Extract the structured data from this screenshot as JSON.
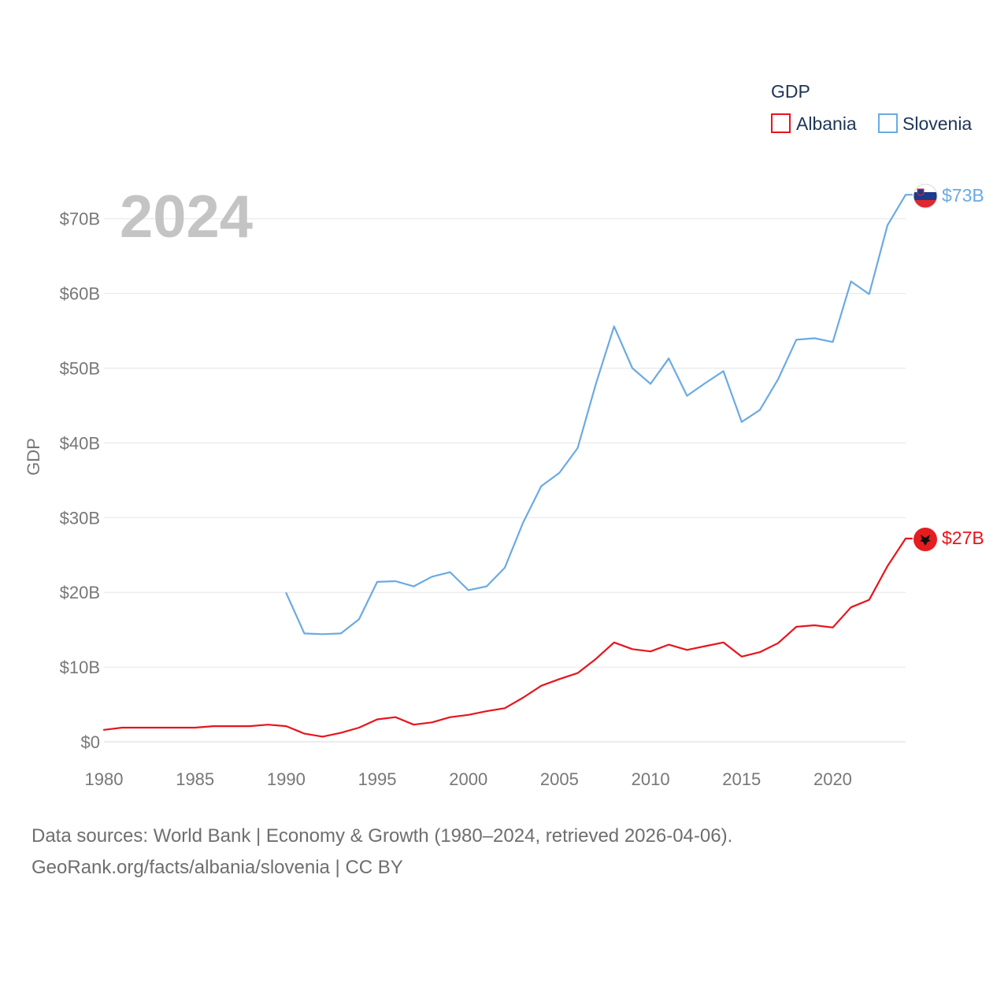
{
  "chart_data": {
    "type": "line",
    "title": "GDP",
    "year_label": "2024",
    "ylabel": "GDP",
    "xlabel": "",
    "ylim": [
      0,
      73
    ],
    "xlim": [
      1980,
      2024
    ],
    "y_ticks": [
      {
        "value": 0,
        "label": "$0"
      },
      {
        "value": 10,
        "label": "$10B"
      },
      {
        "value": 20,
        "label": "$20B"
      },
      {
        "value": 30,
        "label": "$30B"
      },
      {
        "value": 40,
        "label": "$40B"
      },
      {
        "value": 50,
        "label": "$50B"
      },
      {
        "value": 60,
        "label": "$60B"
      },
      {
        "value": 70,
        "label": "$70B"
      }
    ],
    "x_ticks": [
      {
        "value": 1980,
        "label": "1980"
      },
      {
        "value": 1985,
        "label": "1985"
      },
      {
        "value": 1990,
        "label": "1990"
      },
      {
        "value": 1995,
        "label": "1995"
      },
      {
        "value": 2000,
        "label": "2000"
      },
      {
        "value": 2005,
        "label": "2005"
      },
      {
        "value": 2010,
        "label": "2010"
      },
      {
        "value": 2015,
        "label": "2015"
      },
      {
        "value": 2020,
        "label": "2020"
      }
    ],
    "grid": true,
    "legend": {
      "title": "GDP",
      "placement": "top-right"
    },
    "series": [
      {
        "name": "Albania",
        "color": "#e8141c",
        "end_label": "$27B",
        "x": [
          1980,
          1981,
          1982,
          1983,
          1984,
          1985,
          1986,
          1987,
          1988,
          1989,
          1990,
          1991,
          1992,
          1993,
          1994,
          1995,
          1996,
          1997,
          1998,
          1999,
          2000,
          2001,
          2002,
          2003,
          2004,
          2005,
          2006,
          2007,
          2008,
          2009,
          2010,
          2011,
          2012,
          2013,
          2014,
          2015,
          2016,
          2017,
          2018,
          2019,
          2020,
          2021,
          2022,
          2023,
          2024
        ],
        "values": [
          1.6,
          1.9,
          1.9,
          1.9,
          1.9,
          1.9,
          2.1,
          2.1,
          2.1,
          2.3,
          2.1,
          1.1,
          0.7,
          1.2,
          1.9,
          3.0,
          3.3,
          2.3,
          2.6,
          3.3,
          3.6,
          4.1,
          4.5,
          5.9,
          7.5,
          8.4,
          9.2,
          11.1,
          13.3,
          12.4,
          12.1,
          13.0,
          12.3,
          12.8,
          13.3,
          11.4,
          12.0,
          13.2,
          15.4,
          15.6,
          15.3,
          18.0,
          19.0,
          23.5,
          27.2
        ]
      },
      {
        "name": "Slovenia",
        "color": "#6aaae4",
        "end_label": "$73B",
        "x": [
          1990,
          1991,
          1992,
          1993,
          1994,
          1995,
          1996,
          1997,
          1998,
          1999,
          2000,
          2001,
          2002,
          2003,
          2004,
          2005,
          2006,
          2007,
          2008,
          2009,
          2010,
          2011,
          2012,
          2013,
          2014,
          2015,
          2016,
          2017,
          2018,
          2019,
          2020,
          2021,
          2022,
          2023,
          2024
        ],
        "values": [
          19.9,
          14.5,
          14.4,
          14.5,
          16.4,
          21.4,
          21.5,
          20.8,
          22.1,
          22.7,
          20.3,
          20.8,
          23.3,
          29.3,
          34.2,
          36.0,
          39.3,
          47.9,
          55.6,
          50.0,
          47.9,
          51.3,
          46.3,
          48.0,
          49.6,
          42.8,
          44.4,
          48.5,
          53.8,
          54.0,
          53.5,
          61.6,
          59.9,
          69.1,
          73.2
        ]
      }
    ]
  },
  "footer": {
    "line1": "Data sources: World Bank | Economy & Growth (1980–2024, retrieved 2026-04-06).",
    "line2": "GeoRank.org/facts/albania/slovenia | CC BY"
  }
}
